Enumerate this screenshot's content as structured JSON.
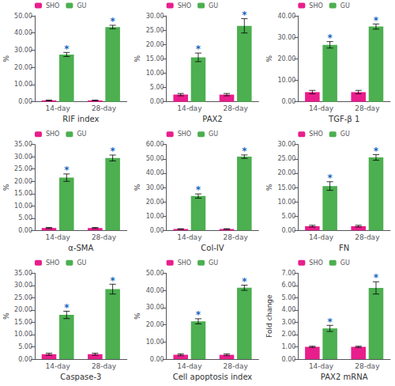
{
  "chart_data": [
    {
      "type": "bar",
      "xlabel": "RIF index",
      "ylabel": "%",
      "categories": [
        "14-day",
        "28-day"
      ],
      "series": [
        {
          "name": "SHO",
          "color": "#e91e8c",
          "values": [
            0.8,
            0.8
          ],
          "errors": [
            0.15,
            0.15
          ]
        },
        {
          "name": "GU",
          "color": "#4caf50",
          "values": [
            27.5,
            43.5
          ],
          "errors": [
            1.2,
            1.0
          ]
        }
      ],
      "ylim": [
        0,
        50
      ],
      "yticks": [
        {
          "value": 0,
          "label": "0.00"
        },
        {
          "value": 10,
          "label": "10.00"
        },
        {
          "value": 20,
          "label": "20.00"
        },
        {
          "value": 30,
          "label": "30.00"
        },
        {
          "value": 40,
          "label": "40.00"
        },
        {
          "value": 50,
          "label": "50.00"
        }
      ],
      "annotations": [
        {
          "text": "*",
          "series": "GU",
          "category": "14-day",
          "color": "#1565c0"
        },
        {
          "text": "*",
          "series": "GU",
          "category": "28-day",
          "color": "#1565c0"
        }
      ],
      "legend": "upper left",
      "grid": false
    },
    {
      "type": "bar",
      "xlabel": "PAX2",
      "ylabel": "%",
      "categories": [
        "14-day",
        "28-day"
      ],
      "series": [
        {
          "name": "SHO",
          "color": "#e91e8c",
          "values": [
            2.5,
            2.5
          ],
          "errors": [
            0.4,
            0.4
          ]
        },
        {
          "name": "GU",
          "color": "#4caf50",
          "values": [
            15.5,
            26.5
          ],
          "errors": [
            1.5,
            2.5
          ]
        }
      ],
      "ylim": [
        0,
        30
      ],
      "yticks": [
        {
          "value": 0,
          "label": "0.00"
        },
        {
          "value": 5,
          "label": "5.00"
        },
        {
          "value": 10,
          "label": "10.00"
        },
        {
          "value": 15,
          "label": "15.00"
        },
        {
          "value": 20,
          "label": "20.00"
        },
        {
          "value": 25,
          "label": "25.00"
        },
        {
          "value": 30,
          "label": "30.00"
        }
      ],
      "annotations": [
        {
          "text": "*",
          "series": "GU",
          "category": "14-day",
          "color": "#1565c0"
        },
        {
          "text": "*",
          "series": "GU",
          "category": "28-day",
          "color": "#1565c0"
        }
      ],
      "legend": "upper left",
      "grid": false
    },
    {
      "type": "bar",
      "xlabel": "TGF-β 1",
      "ylabel": "%",
      "categories": [
        "14-day",
        "28-day"
      ],
      "series": [
        {
          "name": "SHO",
          "color": "#e91e8c",
          "values": [
            4.5,
            4.5
          ],
          "errors": [
            0.8,
            0.8
          ]
        },
        {
          "name": "GU",
          "color": "#4caf50",
          "values": [
            26.5,
            35.0
          ],
          "errors": [
            1.5,
            1.2
          ]
        }
      ],
      "ylim": [
        0,
        40
      ],
      "yticks": [
        {
          "value": 0,
          "label": "0.00"
        },
        {
          "value": 10,
          "label": "10.00"
        },
        {
          "value": 20,
          "label": "20.00"
        },
        {
          "value": 30,
          "label": "30.00"
        },
        {
          "value": 40,
          "label": "40.00"
        }
      ],
      "annotations": [
        {
          "text": "*",
          "series": "GU",
          "category": "14-day",
          "color": "#1565c0"
        },
        {
          "text": "*",
          "series": "GU",
          "category": "28-day",
          "color": "#1565c0"
        }
      ],
      "legend": "upper left",
      "grid": false
    },
    {
      "type": "bar",
      "xlabel": "α-SMA",
      "ylabel": "%",
      "categories": [
        "14-day",
        "28-day"
      ],
      "series": [
        {
          "name": "SHO",
          "color": "#e91e8c",
          "values": [
            1.0,
            1.0
          ],
          "errors": [
            0.2,
            0.2
          ]
        },
        {
          "name": "GU",
          "color": "#4caf50",
          "values": [
            21.5,
            29.5
          ],
          "errors": [
            1.5,
            1.2
          ]
        }
      ],
      "ylim": [
        0,
        35
      ],
      "yticks": [
        {
          "value": 0,
          "label": "0.00"
        },
        {
          "value": 5,
          "label": "5.00"
        },
        {
          "value": 10,
          "label": "10.00"
        },
        {
          "value": 15,
          "label": "15.00"
        },
        {
          "value": 20,
          "label": "20.00"
        },
        {
          "value": 25,
          "label": "25.00"
        },
        {
          "value": 30,
          "label": "30.00"
        },
        {
          "value": 35,
          "label": "35.00"
        }
      ],
      "annotations": [
        {
          "text": "*",
          "series": "GU",
          "category": "14-day",
          "color": "#1565c0"
        },
        {
          "text": "*",
          "series": "GU",
          "category": "28-day",
          "color": "#1565c0"
        }
      ],
      "legend": "upper left",
      "grid": false
    },
    {
      "type": "bar",
      "xlabel": "Col-IV",
      "ylabel": "%",
      "categories": [
        "14-day",
        "28-day"
      ],
      "series": [
        {
          "name": "SHO",
          "color": "#e91e8c",
          "values": [
            1.0,
            1.0
          ],
          "errors": [
            0.2,
            0.2
          ]
        },
        {
          "name": "GU",
          "color": "#4caf50",
          "values": [
            24.0,
            51.5
          ],
          "errors": [
            1.5,
            1.2
          ]
        }
      ],
      "ylim": [
        0,
        60
      ],
      "yticks": [
        {
          "value": 0,
          "label": "0.00"
        },
        {
          "value": 10,
          "label": "10.00"
        },
        {
          "value": 20,
          "label": "20.00"
        },
        {
          "value": 30,
          "label": "30.00"
        },
        {
          "value": 40,
          "label": "40.00"
        },
        {
          "value": 50,
          "label": "50.00"
        },
        {
          "value": 60,
          "label": "60.00"
        }
      ],
      "annotations": [
        {
          "text": "*",
          "series": "GU",
          "category": "14-day",
          "color": "#1565c0"
        },
        {
          "text": "*",
          "series": "GU",
          "category": "28-day",
          "color": "#1565c0"
        }
      ],
      "legend": "upper left",
      "grid": false
    },
    {
      "type": "bar",
      "xlabel": "FN",
      "ylabel": "%",
      "categories": [
        "14-day",
        "28-day"
      ],
      "series": [
        {
          "name": "SHO",
          "color": "#e91e8c",
          "values": [
            1.5,
            1.5
          ],
          "errors": [
            0.3,
            0.3
          ]
        },
        {
          "name": "GU",
          "color": "#4caf50",
          "values": [
            15.5,
            25.5
          ],
          "errors": [
            1.5,
            1.0
          ]
        }
      ],
      "ylim": [
        0,
        30
      ],
      "yticks": [
        {
          "value": 0,
          "label": "0.00"
        },
        {
          "value": 5,
          "label": "5.00"
        },
        {
          "value": 10,
          "label": "10.00"
        },
        {
          "value": 15,
          "label": "15.00"
        },
        {
          "value": 20,
          "label": "20.00"
        },
        {
          "value": 25,
          "label": "25.00"
        },
        {
          "value": 30,
          "label": "30.00"
        }
      ],
      "annotations": [
        {
          "text": "*",
          "series": "GU",
          "category": "14-day",
          "color": "#1565c0"
        },
        {
          "text": "*",
          "series": "GU",
          "category": "28-day",
          "color": "#1565c0"
        }
      ],
      "legend": "upper left",
      "grid": false
    },
    {
      "type": "bar",
      "xlabel": "Caspase-3",
      "ylabel": "%",
      "categories": [
        "14-day",
        "28-day"
      ],
      "series": [
        {
          "name": "SHO",
          "color": "#e91e8c",
          "values": [
            2.0,
            2.0
          ],
          "errors": [
            0.4,
            0.4
          ]
        },
        {
          "name": "GU",
          "color": "#4caf50",
          "values": [
            18.0,
            28.5
          ],
          "errors": [
            1.5,
            2.0
          ]
        }
      ],
      "ylim": [
        0,
        35
      ],
      "yticks": [
        {
          "value": 0,
          "label": "0.00"
        },
        {
          "value": 5,
          "label": "5.00"
        },
        {
          "value": 10,
          "label": "10.00"
        },
        {
          "value": 15,
          "label": "15.00"
        },
        {
          "value": 20,
          "label": "20.00"
        },
        {
          "value": 25,
          "label": "25.00"
        },
        {
          "value": 30,
          "label": "30.00"
        },
        {
          "value": 35,
          "label": "35.00"
        }
      ],
      "annotations": [
        {
          "text": "*",
          "series": "GU",
          "category": "14-day",
          "color": "#1565c0"
        },
        {
          "text": "*",
          "series": "GU",
          "category": "28-day",
          "color": "#1565c0"
        }
      ],
      "legend": "upper left",
      "grid": false
    },
    {
      "type": "bar",
      "xlabel": "Cell apoptosis index",
      "ylabel": "%",
      "categories": [
        "14-day",
        "28-day"
      ],
      "series": [
        {
          "name": "SHO",
          "color": "#e91e8c",
          "values": [
            2.5,
            2.5
          ],
          "errors": [
            0.5,
            0.5
          ]
        },
        {
          "name": "GU",
          "color": "#4caf50",
          "values": [
            22.0,
            41.5
          ],
          "errors": [
            1.5,
            1.5
          ]
        }
      ],
      "ylim": [
        0,
        50
      ],
      "yticks": [
        {
          "value": 0,
          "label": "0.00"
        },
        {
          "value": 10,
          "label": "10.00"
        },
        {
          "value": 20,
          "label": "20.00"
        },
        {
          "value": 30,
          "label": "30.00"
        },
        {
          "value": 40,
          "label": "40.00"
        },
        {
          "value": 50,
          "label": "50.00"
        }
      ],
      "annotations": [
        {
          "text": "*",
          "series": "GU",
          "category": "14-day",
          "color": "#1565c0"
        },
        {
          "text": "*",
          "series": "GU",
          "category": "28-day",
          "color": "#1565c0"
        }
      ],
      "legend": "upper left",
      "grid": false
    },
    {
      "type": "bar",
      "xlabel": "PAX2 mRNA",
      "ylabel": "Fold change",
      "categories": [
        "14-day",
        "28-day"
      ],
      "series": [
        {
          "name": "SHO",
          "color": "#e91e8c",
          "values": [
            1.0,
            1.0
          ],
          "errors": [
            0.05,
            0.05
          ]
        },
        {
          "name": "GU",
          "color": "#4caf50",
          "values": [
            2.5,
            5.8
          ],
          "errors": [
            0.25,
            0.5
          ]
        }
      ],
      "ylim": [
        0,
        7
      ],
      "yticks": [
        {
          "value": 0,
          "label": "0.00"
        },
        {
          "value": 1,
          "label": "1.00"
        },
        {
          "value": 2,
          "label": "2.00"
        },
        {
          "value": 3,
          "label": "3.00"
        },
        {
          "value": 4,
          "label": "4.00"
        },
        {
          "value": 5,
          "label": "5.00"
        },
        {
          "value": 6,
          "label": "6.00"
        },
        {
          "value": 7,
          "label": "7.00"
        }
      ],
      "annotations": [
        {
          "text": "*",
          "series": "GU",
          "category": "14-day",
          "color": "#1565c0"
        },
        {
          "text": "*",
          "series": "GU",
          "category": "28-day",
          "color": "#1565c0"
        }
      ],
      "legend": "upper left",
      "grid": false
    }
  ]
}
